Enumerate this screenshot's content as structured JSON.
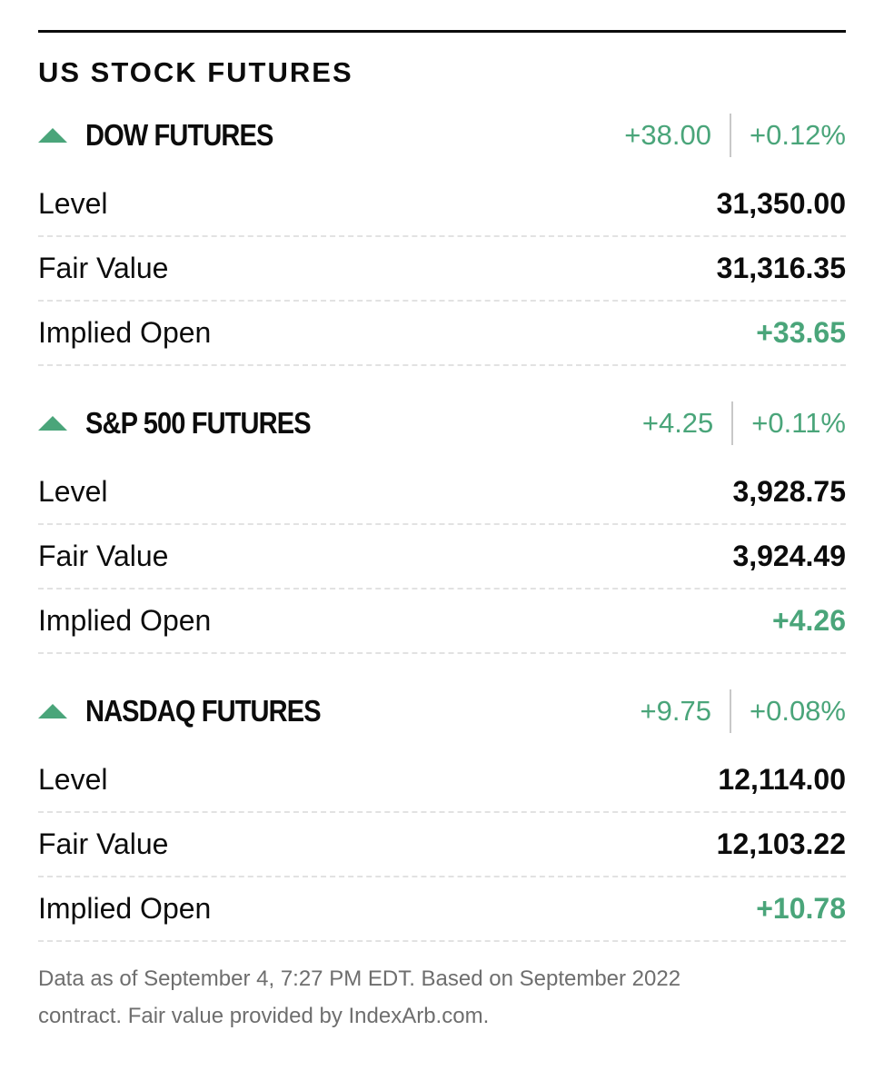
{
  "header": {
    "title": "US STOCK FUTURES"
  },
  "sections": [
    {
      "name": "DOW FUTURES",
      "change": "+38.00",
      "percent": "+0.12%",
      "rows": [
        {
          "label": "Level",
          "value": "31,350.00"
        },
        {
          "label": "Fair Value",
          "value": "31,316.35"
        },
        {
          "label": "Implied Open",
          "value": "+33.65"
        }
      ]
    },
    {
      "name": "S&P 500 FUTURES",
      "change": "+4.25",
      "percent": "+0.11%",
      "rows": [
        {
          "label": "Level",
          "value": "3,928.75"
        },
        {
          "label": "Fair Value",
          "value": "3,924.49"
        },
        {
          "label": "Implied Open",
          "value": "+4.26"
        }
      ]
    },
    {
      "name": "NASDAQ FUTURES",
      "change": "+9.75",
      "percent": "+0.08%",
      "rows": [
        {
          "label": "Level",
          "value": "12,114.00"
        },
        {
          "label": "Fair Value",
          "value": "12,103.22"
        },
        {
          "label": "Implied Open",
          "value": "+10.78"
        }
      ]
    }
  ],
  "footer": {
    "note": "Data as of September 4, 7:27 PM EDT. Based on September 2022 contract. Fair value provided by IndexArb.com."
  }
}
